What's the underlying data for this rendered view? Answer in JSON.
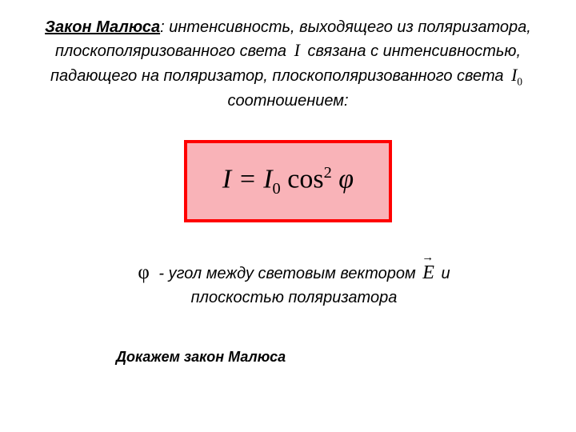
{
  "header": {
    "title": "Закон Малюса",
    "part1": ": интенсивность, выходящего из поляризатора, плоскополяризованного света",
    "var1": "I",
    "part2": "связана с интенсивностью, падающего на поляризатор, плоскополяризованного света",
    "var2": "I",
    "var2_sub": "0",
    "part3": "соотношением:"
  },
  "formula": {
    "lhs": "I",
    "eq": " = ",
    "i": "I",
    "i_sub": "0",
    "space": " ",
    "cos": "cos",
    "exp": "2",
    "phi_space": " ",
    "phi": "φ",
    "text_color": "#000000",
    "border_color": "#ff0000",
    "bg_color": "#f9b3b8",
    "fontsize": 34
  },
  "subtext": {
    "phi": "φ",
    "part1": " - угол между световым вектором",
    "vec": "E",
    "part2": "и плоскостью поляризатора"
  },
  "footer": {
    "text": "Докажем закон Малюса"
  },
  "colors": {
    "background": "#ffffff",
    "text": "#000000"
  },
  "fonts": {
    "body_size": 20,
    "body_style": "italic",
    "formula_family": "Times New Roman",
    "formula_size": 34,
    "footer_size": 18
  }
}
